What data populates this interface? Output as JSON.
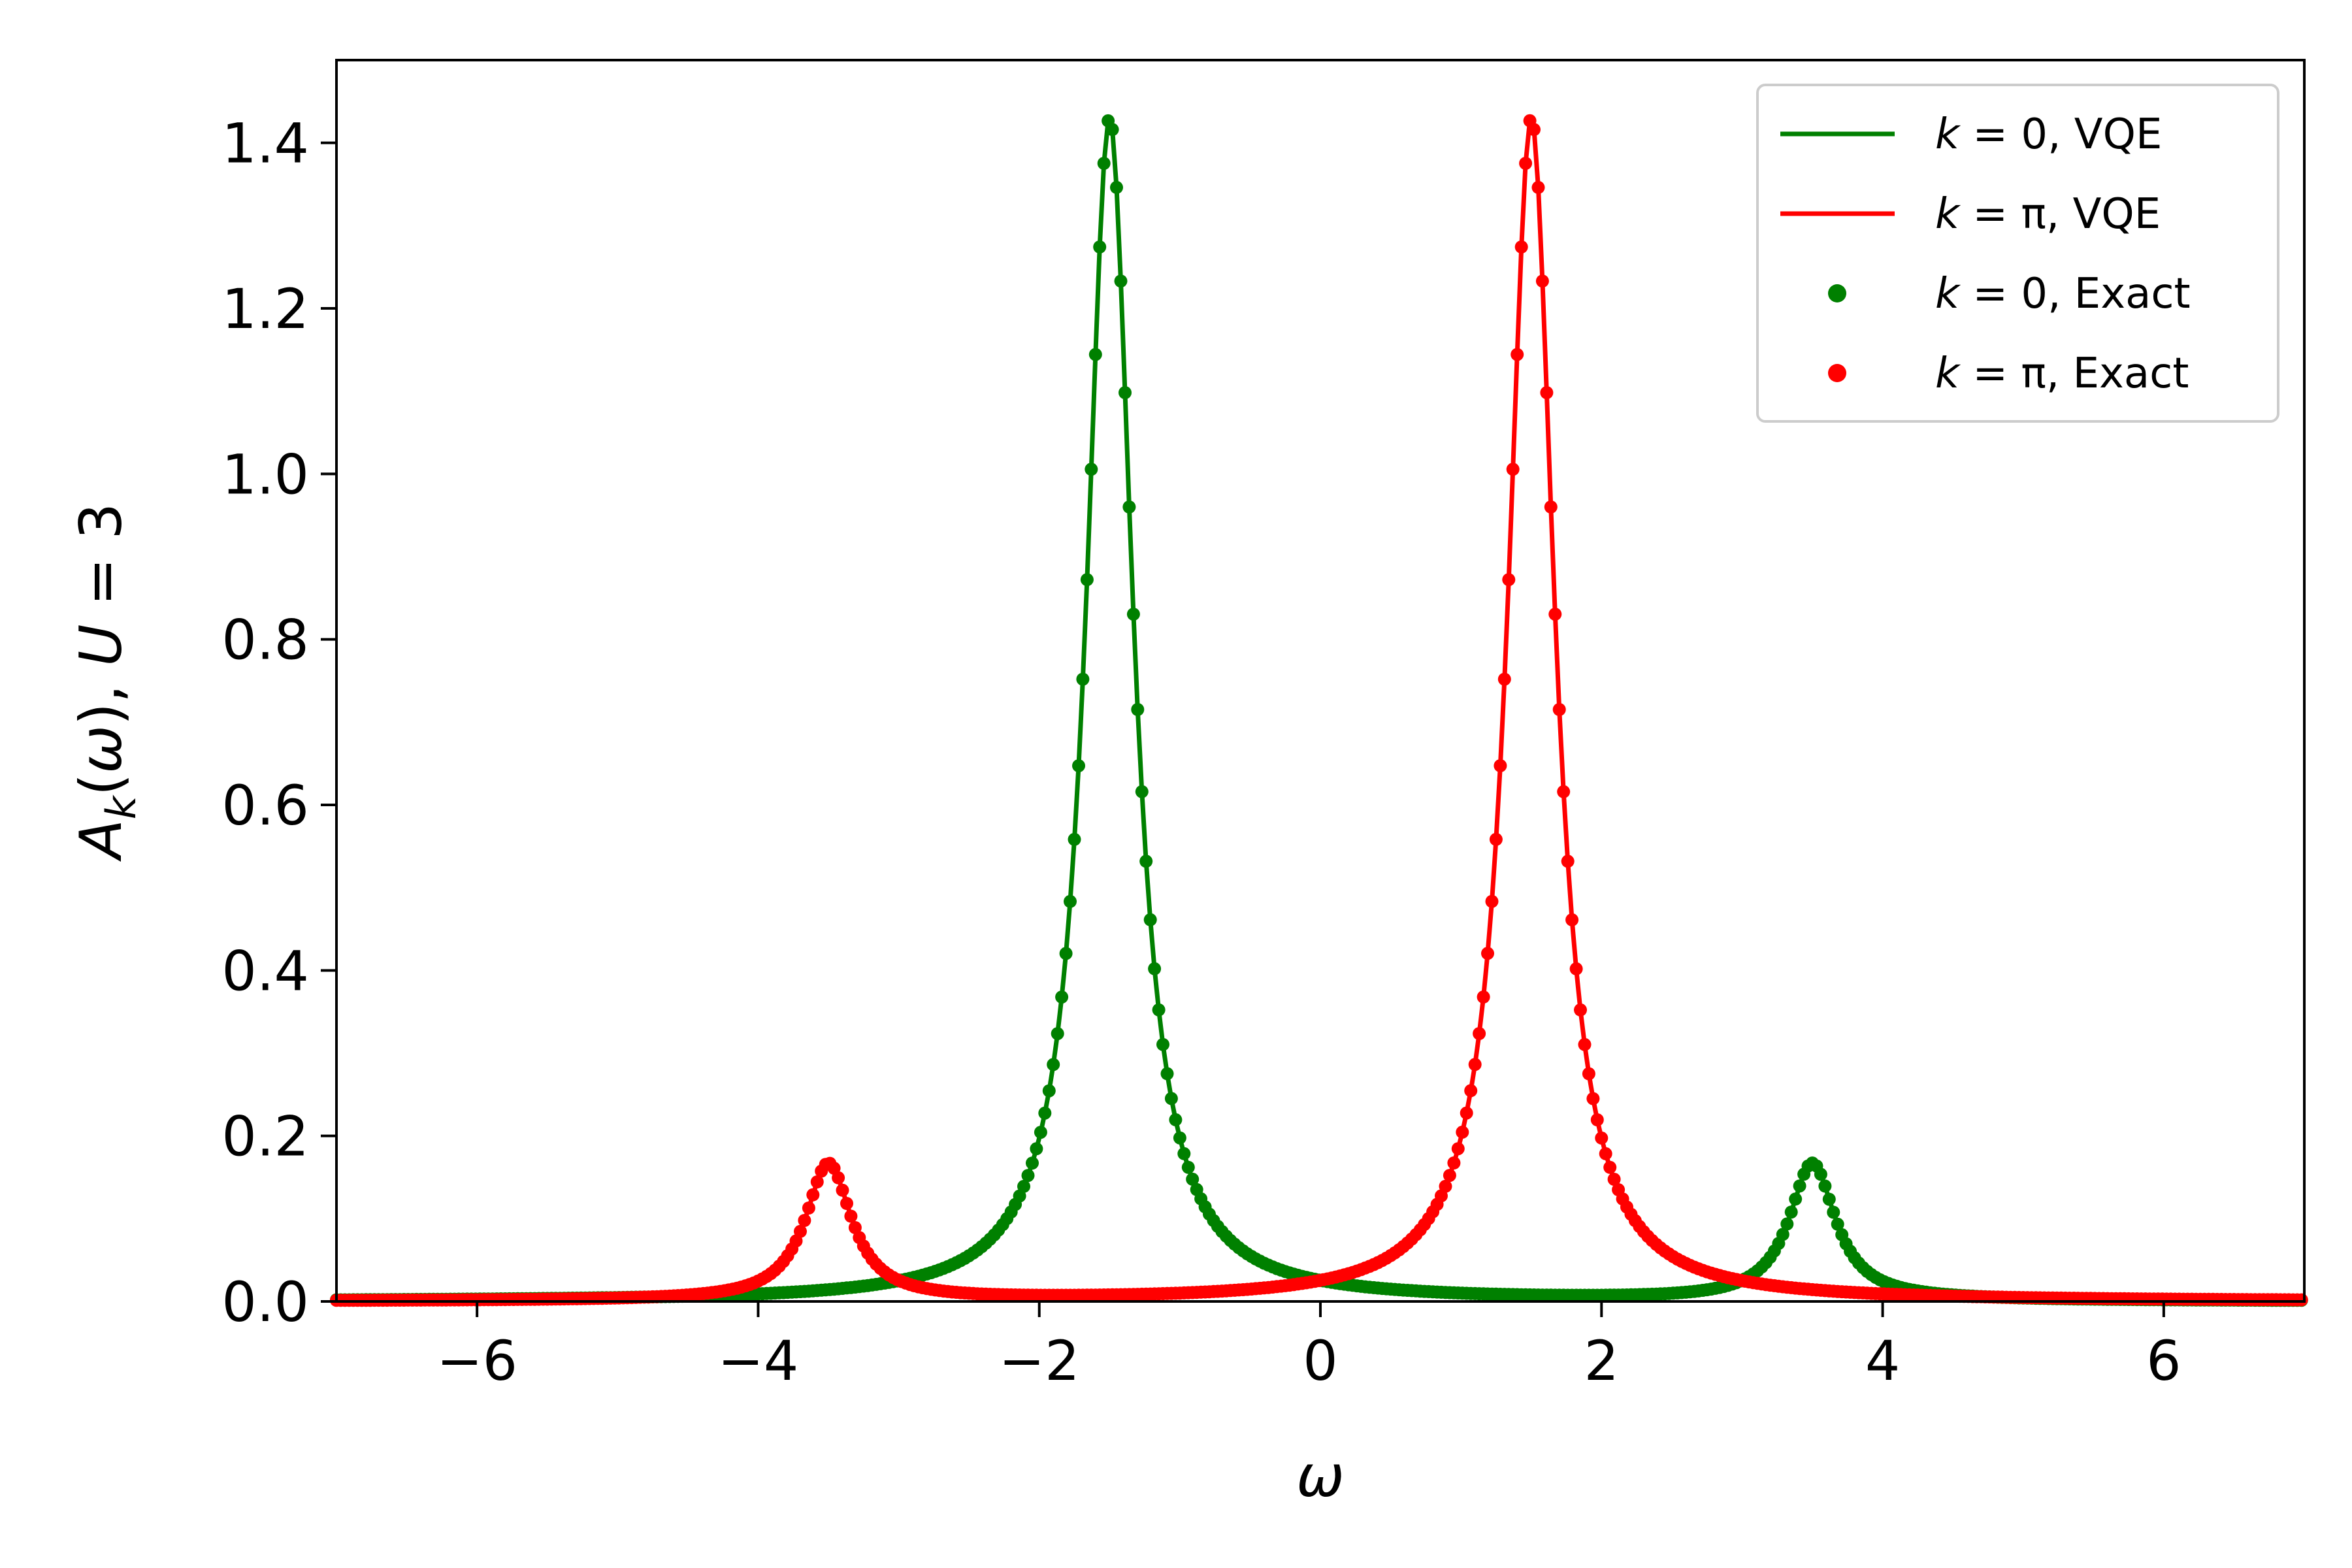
{
  "chart_data": {
    "type": "line",
    "xlabel": "ω",
    "ylabel": "A_k(ω), U = 3",
    "ylabel_parts": {
      "A": "A",
      "k": "k",
      "rest_1": "(",
      "w": "ω",
      "rest_2": "), ",
      "U": "U",
      "rest_3": " = 3"
    },
    "xlim": [
      -7,
      7
    ],
    "ylim": [
      0,
      1.5
    ],
    "xticks": [
      -6,
      -4,
      -2,
      0,
      2,
      4,
      6
    ],
    "xtick_labels": [
      "−6",
      "−4",
      "−2",
      "0",
      "2",
      "4",
      "6"
    ],
    "yticks": [
      0.0,
      0.2,
      0.4,
      0.6,
      0.8,
      1.0,
      1.2,
      1.4
    ],
    "ytick_labels": [
      "0.0",
      "0.2",
      "0.4",
      "0.6",
      "0.8",
      "1.0",
      "1.2",
      "1.4"
    ],
    "grid": false,
    "legend_position": "top-right",
    "x_range": [
      -7,
      7
    ],
    "x_step": 0.03,
    "series": [
      {
        "name": "k = 0, VQE",
        "label_parts": {
          "k": "k",
          "eq": " = 0",
          "rest": ", VQE"
        },
        "style": "line",
        "color": "#008000",
        "peaks": [
          {
            "center": -1.5,
            "height": 1.43,
            "halfwidth": 0.2
          },
          {
            "center": 3.5,
            "height": 0.165,
            "halfwidth": 0.2
          }
        ]
      },
      {
        "name": "k = π, VQE",
        "label_parts": {
          "k": "k",
          "eq": " = π",
          "rest": ", VQE"
        },
        "style": "line",
        "color": "#ff0000",
        "peaks": [
          {
            "center": 1.5,
            "height": 1.43,
            "halfwidth": 0.2
          },
          {
            "center": -3.5,
            "height": 0.165,
            "halfwidth": 0.2
          }
        ]
      },
      {
        "name": "k = 0, Exact",
        "label_parts": {
          "k": "k",
          "eq": " = 0",
          "rest": ", Exact"
        },
        "style": "markers",
        "color": "#008000",
        "peaks": [
          {
            "center": -1.5,
            "height": 1.43,
            "halfwidth": 0.2
          },
          {
            "center": 3.5,
            "height": 0.165,
            "halfwidth": 0.2
          }
        ]
      },
      {
        "name": "k = π, Exact",
        "label_parts": {
          "k": "k",
          "eq": " = π",
          "rest": ", Exact"
        },
        "style": "markers",
        "color": "#ff0000",
        "peaks": [
          {
            "center": 1.5,
            "height": 1.43,
            "halfwidth": 0.2
          },
          {
            "center": -3.5,
            "height": 0.165,
            "halfwidth": 0.2
          }
        ]
      }
    ]
  }
}
